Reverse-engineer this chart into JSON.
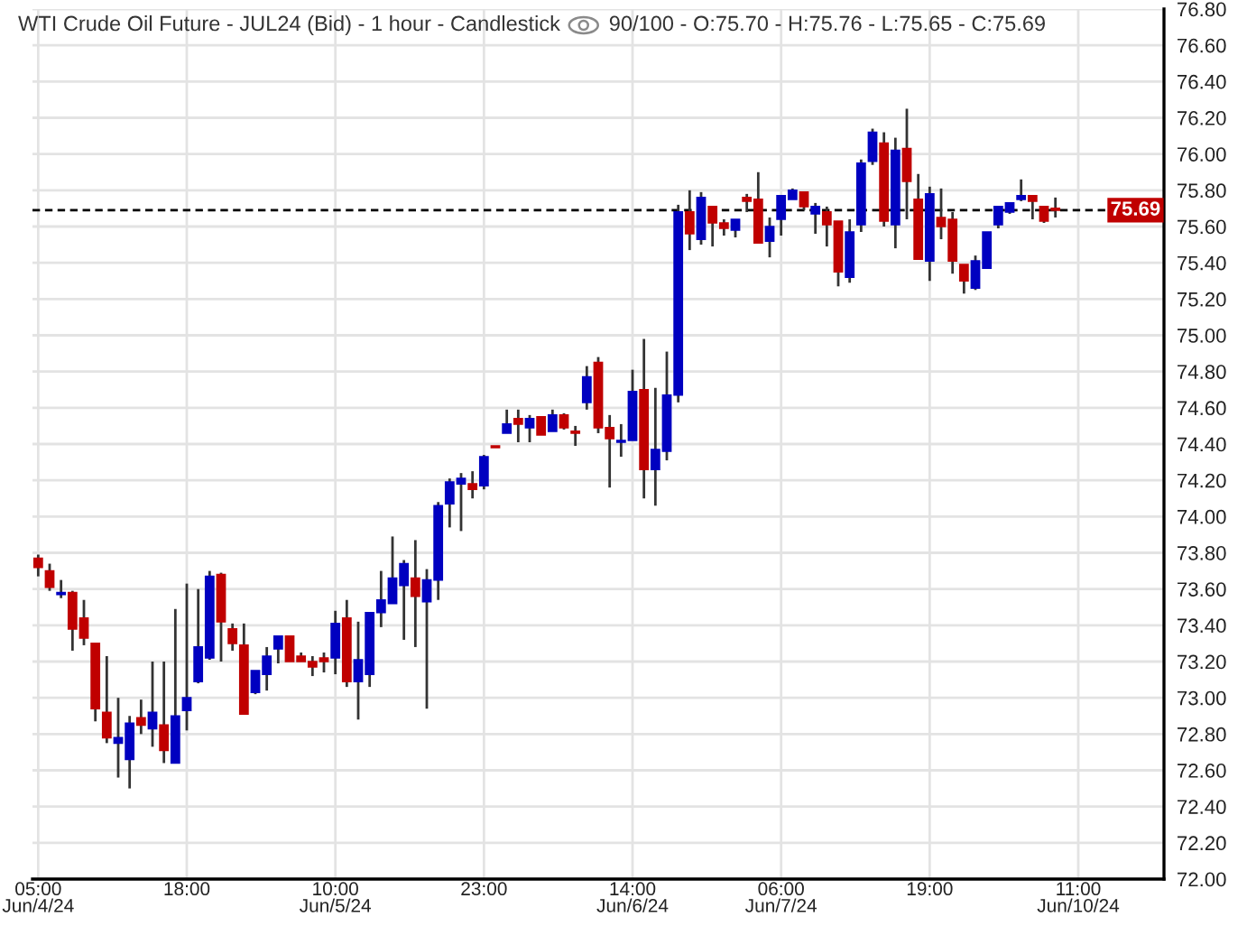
{
  "chart_data": {
    "type": "candlestick",
    "title": "WTI Crude Oil Future - JUL24 (Bid) - 1 hour - Candlestick",
    "subtitle": "90/100 - O:75.70 - H:75.76 - L:75.65 - C:75.69",
    "categories": [
      "05:00\nJun/4/24",
      null,
      null,
      null,
      null,
      null,
      null,
      null,
      null,
      null,
      null,
      null,
      null,
      "18:00",
      null,
      null,
      null,
      null,
      null,
      null,
      null,
      null,
      null,
      null,
      null,
      null,
      "10:00\nJun/5/24",
      null,
      null,
      null,
      null,
      null,
      null,
      null,
      null,
      null,
      null,
      null,
      null,
      "23:00",
      null,
      null,
      null,
      null,
      null,
      null,
      null,
      null,
      null,
      null,
      null,
      null,
      "14:00\nJun/6/24",
      null,
      null,
      null,
      null,
      null,
      null,
      null,
      null,
      null,
      null,
      null,
      null,
      "06:00\nJun/7/24",
      null,
      null,
      null,
      null,
      null,
      null,
      null,
      null,
      null,
      null,
      null,
      null,
      "19:00",
      null,
      null,
      null,
      null,
      null,
      null,
      null,
      null,
      null,
      null,
      null,
      null,
      "11:00\nJun/10/24",
      null,
      null,
      null,
      null,
      null,
      null,
      null
    ],
    "ohlc": [
      [
        73.77,
        73.79,
        73.67,
        73.72
      ],
      [
        73.7,
        73.74,
        73.59,
        73.61
      ],
      [
        73.57,
        73.65,
        73.55,
        73.58
      ],
      [
        73.58,
        73.59,
        73.26,
        73.38
      ],
      [
        73.44,
        73.54,
        73.29,
        73.33
      ],
      [
        73.3,
        73.3,
        72.87,
        72.94
      ],
      [
        72.92,
        73.23,
        72.75,
        72.78
      ],
      [
        72.75,
        73.0,
        72.56,
        72.78
      ],
      [
        72.66,
        72.9,
        72.5,
        72.86
      ],
      [
        72.89,
        72.99,
        72.8,
        72.85
      ],
      [
        72.83,
        73.2,
        72.73,
        72.92
      ],
      [
        72.85,
        73.2,
        72.64,
        72.71
      ],
      [
        72.64,
        73.49,
        72.64,
        72.9
      ],
      [
        72.93,
        73.63,
        72.82,
        73.0
      ],
      [
        73.09,
        73.6,
        73.08,
        73.28
      ],
      [
        73.22,
        73.7,
        73.21,
        73.67
      ],
      [
        73.68,
        73.69,
        73.2,
        73.42
      ],
      [
        73.38,
        73.41,
        73.26,
        73.3
      ],
      [
        73.29,
        73.41,
        72.91,
        72.91
      ],
      [
        73.03,
        73.15,
        73.02,
        73.15
      ],
      [
        73.13,
        73.28,
        73.04,
        73.23
      ],
      [
        73.27,
        73.34,
        73.19,
        73.34
      ],
      [
        73.34,
        73.34,
        73.2,
        73.2
      ],
      [
        73.23,
        73.25,
        73.2,
        73.2
      ],
      [
        73.2,
        73.23,
        73.12,
        73.17
      ],
      [
        73.22,
        73.25,
        73.14,
        73.2
      ],
      [
        73.22,
        73.48,
        73.13,
        73.41
      ],
      [
        73.44,
        73.54,
        73.06,
        73.09
      ],
      [
        73.09,
        73.42,
        72.88,
        73.21
      ],
      [
        73.13,
        73.47,
        73.06,
        73.47
      ],
      [
        73.47,
        73.7,
        73.39,
        73.54
      ],
      [
        73.52,
        73.89,
        73.52,
        73.66
      ],
      [
        73.62,
        73.76,
        73.32,
        73.74
      ],
      [
        73.66,
        73.87,
        73.28,
        73.56
      ],
      [
        73.53,
        73.71,
        72.94,
        73.65
      ],
      [
        73.65,
        74.08,
        73.54,
        74.06
      ],
      [
        74.07,
        74.21,
        73.94,
        74.19
      ],
      [
        74.18,
        74.24,
        73.92,
        74.21
      ],
      [
        74.18,
        74.25,
        74.1,
        74.15
      ],
      [
        74.17,
        74.34,
        74.15,
        74.33
      ],
      [
        74.39,
        74.39,
        74.38,
        74.38
      ],
      [
        74.46,
        74.59,
        74.46,
        74.51
      ],
      [
        74.54,
        74.59,
        74.41,
        74.51
      ],
      [
        74.49,
        74.56,
        74.41,
        74.54
      ],
      [
        74.55,
        74.55,
        74.45,
        74.45
      ],
      [
        74.47,
        74.59,
        74.47,
        74.56
      ],
      [
        74.56,
        74.57,
        74.48,
        74.49
      ],
      [
        74.47,
        74.5,
        74.39,
        74.46
      ],
      [
        74.63,
        74.83,
        74.59,
        74.77
      ],
      [
        74.85,
        74.88,
        74.46,
        74.49
      ],
      [
        74.49,
        74.56,
        74.16,
        74.43
      ],
      [
        74.41,
        74.51,
        74.33,
        74.42
      ],
      [
        74.42,
        74.81,
        74.42,
        74.69
      ],
      [
        74.7,
        74.98,
        74.1,
        74.26
      ],
      [
        74.26,
        74.71,
        74.06,
        74.37
      ],
      [
        74.36,
        74.91,
        74.31,
        74.67
      ],
      [
        74.67,
        75.72,
        74.63,
        75.68
      ],
      [
        75.68,
        75.8,
        75.47,
        75.56
      ],
      [
        75.53,
        75.79,
        75.5,
        75.76
      ],
      [
        75.71,
        75.71,
        75.49,
        75.62
      ],
      [
        75.62,
        75.64,
        75.55,
        75.59
      ],
      [
        75.58,
        75.64,
        75.54,
        75.64
      ],
      [
        75.76,
        75.78,
        75.68,
        75.74
      ],
      [
        75.75,
        75.9,
        75.51,
        75.51
      ],
      [
        75.52,
        75.65,
        75.43,
        75.6
      ],
      [
        75.64,
        75.77,
        75.55,
        75.77
      ],
      [
        75.75,
        75.81,
        75.75,
        75.8
      ],
      [
        75.79,
        75.79,
        75.69,
        75.71
      ],
      [
        75.67,
        75.73,
        75.56,
        75.71
      ],
      [
        75.68,
        75.71,
        75.49,
        75.61
      ],
      [
        75.63,
        75.63,
        75.27,
        75.35
      ],
      [
        75.32,
        75.64,
        75.29,
        75.57
      ],
      [
        75.61,
        75.97,
        75.57,
        75.95
      ],
      [
        75.96,
        76.14,
        75.94,
        76.12
      ],
      [
        76.06,
        76.12,
        75.6,
        75.63
      ],
      [
        75.61,
        76.09,
        75.48,
        76.02
      ],
      [
        76.03,
        76.25,
        75.64,
        75.85
      ],
      [
        75.75,
        75.89,
        75.42,
        75.42
      ],
      [
        75.41,
        75.82,
        75.3,
        75.78
      ],
      [
        75.65,
        75.81,
        75.53,
        75.6
      ],
      [
        75.64,
        75.68,
        75.34,
        75.41
      ],
      [
        75.39,
        75.39,
        75.23,
        75.3
      ],
      [
        75.26,
        75.44,
        75.25,
        75.41
      ],
      [
        75.37,
        75.57,
        75.37,
        75.57
      ],
      [
        75.61,
        75.71,
        75.59,
        75.71
      ],
      [
        75.68,
        75.73,
        75.67,
        75.73
      ],
      [
        75.75,
        75.86,
        75.74,
        75.77
      ],
      [
        75.77,
        75.77,
        75.64,
        75.74
      ],
      [
        75.71,
        75.71,
        75.62,
        75.63
      ],
      [
        75.7,
        75.76,
        75.65,
        75.69
      ],
      null,
      null,
      null,
      null,
      null,
      null,
      null,
      null,
      null
    ],
    "colors": [
      "#c00000",
      "#c00000",
      "#0000c0",
      "#c00000",
      "#c00000",
      "#c00000",
      "#c00000",
      "#0000c0",
      "#0000c0",
      "#c00000",
      "#0000c0",
      "#c00000",
      "#0000c0",
      "#0000c0",
      "#0000c0",
      "#0000c0",
      "#c00000",
      "#c00000",
      "#c00000",
      "#0000c0",
      "#0000c0",
      "#0000c0",
      "#c00000",
      "#c00000",
      "#c00000",
      "#c00000",
      "#0000c0",
      "#c00000",
      "#0000c0",
      "#0000c0",
      "#0000c0",
      "#0000c0",
      "#0000c0",
      "#c00000",
      "#0000c0",
      "#0000c0",
      "#0000c0",
      "#0000c0",
      "#c00000",
      "#0000c0",
      "#c00000",
      "#0000c0",
      "#c00000",
      "#0000c0",
      "#c00000",
      "#0000c0",
      "#c00000",
      "#c00000",
      "#0000c0",
      "#c00000",
      "#c00000",
      "#0000c0",
      "#0000c0",
      "#c00000",
      "#0000c0",
      "#0000c0",
      "#0000c0",
      "#c00000",
      "#0000c0",
      "#c00000",
      "#c00000",
      "#0000c0",
      "#c00000",
      "#c00000",
      "#0000c0",
      "#0000c0",
      "#0000c0",
      "#c00000",
      "#0000c0",
      "#c00000",
      "#c00000",
      "#0000c0",
      "#0000c0",
      "#0000c0",
      "#c00000",
      "#0000c0",
      "#c00000",
      "#c00000",
      "#0000c0",
      "#c00000",
      "#c00000",
      "#c00000",
      "#0000c0",
      "#0000c0",
      "#0000c0",
      "#0000c0",
      "#0000c0",
      "#c00000",
      "#c00000",
      "#c00000",
      null,
      null,
      null,
      null,
      null,
      null,
      null,
      null,
      null
    ],
    "ylim": [
      72.0,
      76.8
    ],
    "yticks": [
      {
        "value": 72.0,
        "label": "72.00"
      },
      {
        "value": 72.2,
        "label": "72.20"
      },
      {
        "value": 72.4,
        "label": "72.40"
      },
      {
        "value": 72.6,
        "label": "72.60"
      },
      {
        "value": 72.8,
        "label": "72.80"
      },
      {
        "value": 73.0,
        "label": "73.00"
      },
      {
        "value": 73.2,
        "label": "73.20"
      },
      {
        "value": 73.4,
        "label": "73.40"
      },
      {
        "value": 73.6,
        "label": "73.60"
      },
      {
        "value": 73.8,
        "label": "73.80"
      },
      {
        "value": 74.0,
        "label": "74.00"
      },
      {
        "value": 74.2,
        "label": "74.20"
      },
      {
        "value": 74.4,
        "label": "74.40"
      },
      {
        "value": 74.6,
        "label": "74.60"
      },
      {
        "value": 74.8,
        "label": "74.80"
      },
      {
        "value": 75.0,
        "label": "75.00"
      },
      {
        "value": 75.2,
        "label": "75.20"
      },
      {
        "value": 75.4,
        "label": "75.40"
      },
      {
        "value": 75.6,
        "label": "75.60"
      },
      {
        "value": 75.8,
        "label": "75.80"
      },
      {
        "value": 76.0,
        "label": "76.00"
      },
      {
        "value": 76.2,
        "label": "76.20"
      },
      {
        "value": 76.4,
        "label": "76.40"
      },
      {
        "value": 76.6,
        "label": "76.60"
      },
      {
        "value": 76.8,
        "label": "76.80"
      }
    ],
    "ref_lines": [
      {
        "axis": "y",
        "value": 75.69,
        "label": "75.69",
        "line_style": "dashed"
      }
    ],
    "grid": true
  }
}
